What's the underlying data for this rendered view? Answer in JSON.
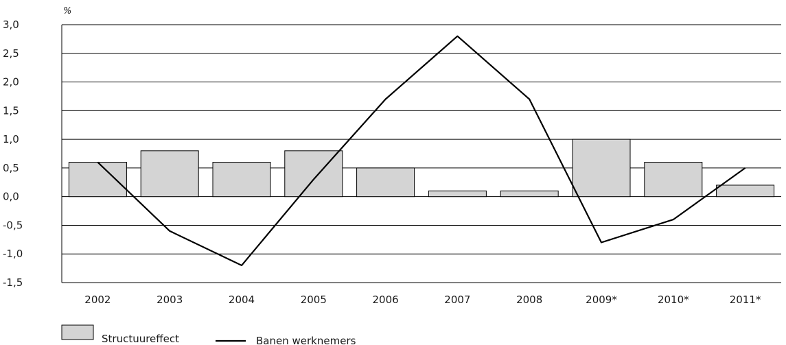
{
  "chart_data": {
    "type": "bar",
    "categories": [
      "2002",
      "2003",
      "2004",
      "2005",
      "2006",
      "2007",
      "2008",
      "2009*",
      "2010*",
      "2011*"
    ],
    "series": [
      {
        "name": "Structuureffect",
        "type": "bar",
        "values": [
          0.6,
          0.8,
          0.6,
          0.8,
          0.5,
          0.1,
          0.1,
          1.0,
          0.6,
          0.2
        ],
        "color": "#d4d4d4"
      },
      {
        "name": "Banen werknemers",
        "type": "line",
        "values": [
          0.6,
          -0.6,
          -1.2,
          0.3,
          1.7,
          2.8,
          1.7,
          -0.8,
          -0.4,
          0.5
        ],
        "color": "#000000"
      }
    ],
    "unit_label": "%",
    "ylim": [
      -1.5,
      3.0
    ],
    "yticks": [
      "-1,5",
      "-1,0",
      "-0,5",
      "0,0",
      "0,5",
      "1,0",
      "1,5",
      "2,0",
      "2,5",
      "3,0"
    ],
    "grid": "horizontal",
    "legend_position": "bottom-left"
  }
}
